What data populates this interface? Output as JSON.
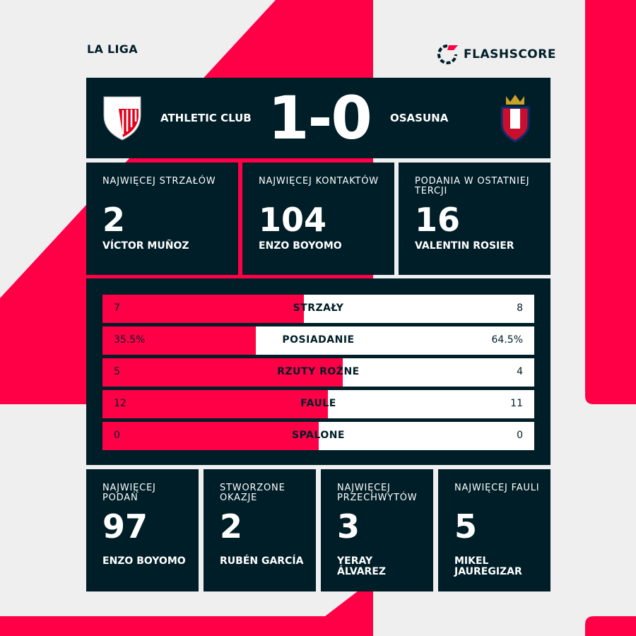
{
  "league": "LA LIGA",
  "brand": {
    "name": "FLASHSCORE",
    "accent": "#ff0046",
    "dark": "#001e28"
  },
  "match": {
    "home": "ATHLETIC CLUB",
    "away": "OSASUNA",
    "score": "1-0",
    "home_crest": "athletic-club-crest-icon",
    "away_crest": "osasuna-crest-icon"
  },
  "top_cards": [
    {
      "label": "NAJWIĘCEJ STRZAŁÓW",
      "value": "2",
      "player": "VÍCTOR MUÑOZ"
    },
    {
      "label": "NAJWIĘCEJ KONTAKTÓW",
      "value": "104",
      "player": "ENZO BOYOMO"
    },
    {
      "label": "PODANIA W OSTATNIEJ TERCJI",
      "value": "16",
      "player": "VALENTIN ROSIER"
    }
  ],
  "stats": [
    {
      "label": "STRZAŁY",
      "home": "7",
      "away": "8",
      "home_share": 0.467
    },
    {
      "label": "POSIADANIE",
      "home": "35.5%",
      "away": "64.5%",
      "home_share": 0.355
    },
    {
      "label": "RZUTY ROŻNE",
      "home": "5",
      "away": "4",
      "home_share": 0.556
    },
    {
      "label": "FAULE",
      "home": "12",
      "away": "11",
      "home_share": 0.522
    },
    {
      "label": "SPALONE",
      "home": "0",
      "away": "0",
      "home_share": 0.5
    }
  ],
  "bottom_cards": [
    {
      "label": "NAJWIĘCEJ PODAŃ",
      "value": "97",
      "player": "ENZO BOYOMO"
    },
    {
      "label": "STWORZONE OKAZJE",
      "value": "2",
      "player": "RUBÉN GARCÍA"
    },
    {
      "label": "NAJWIĘCEJ PRZECHWYTÓW",
      "value": "3",
      "player": "YERAY ÁLVAREZ"
    },
    {
      "label": "NAJWIĘCEJ FAULI",
      "value": "5",
      "player": "MIKEL JAUREGIZAR"
    }
  ]
}
